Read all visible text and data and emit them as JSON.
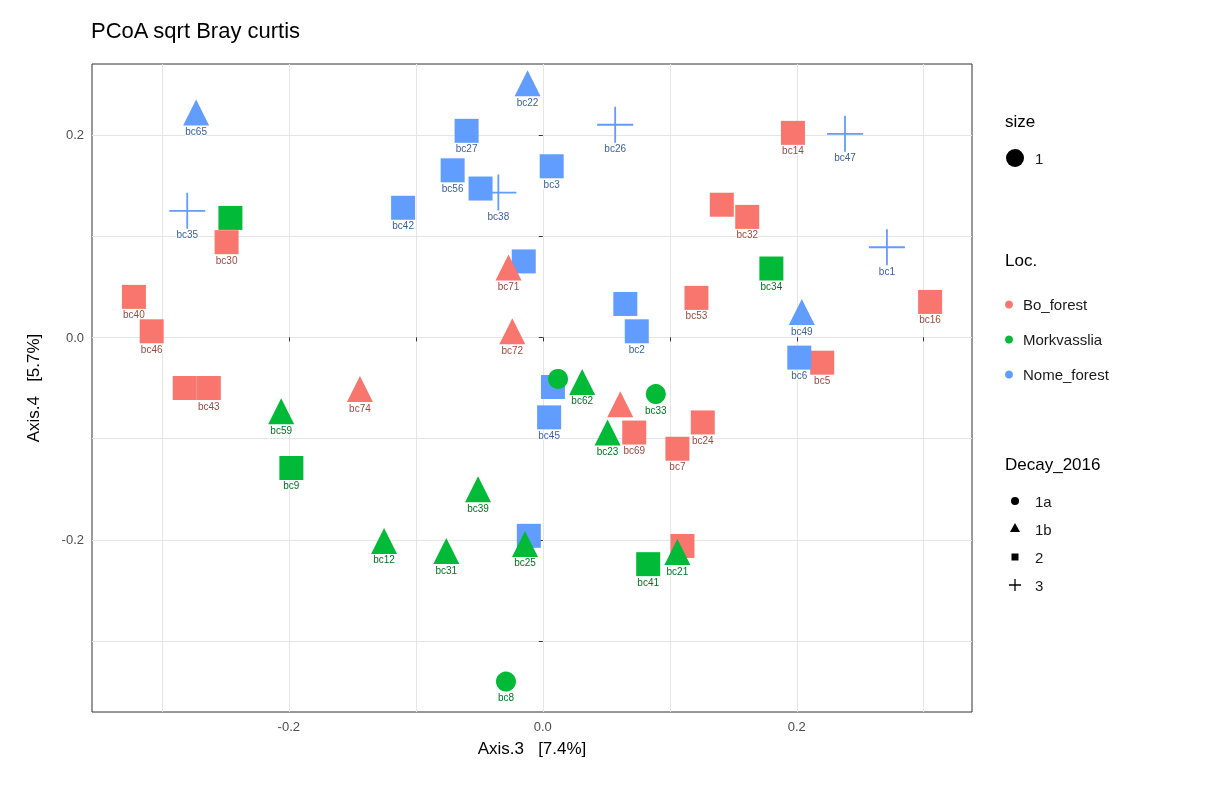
{
  "chart_data": {
    "type": "scatter",
    "title": "PCoA sqrt Bray curtis",
    "xlabel": "Axis.3   [7.4%]",
    "ylabel": "Axis.4   [5.7%]",
    "xlim": [
      -0.355,
      0.338
    ],
    "ylim": [
      -0.37,
      0.27
    ],
    "xticks": [
      {
        "value": -0.3,
        "label": null
      },
      -0.2,
      {
        "value": -0.1,
        "label": null
      },
      {
        "value": 0,
        "label": "0.0"
      },
      {
        "value": 0.1,
        "label": null
      },
      0.2,
      {
        "value": 0.3,
        "label": null
      }
    ],
    "yticks": [
      {
        "value": -0.3,
        "label": null
      },
      -0.2,
      {
        "value": -0.1,
        "label": null
      },
      {
        "value": 0,
        "label": "0.0"
      },
      {
        "value": 0.1,
        "label": null
      },
      0.2
    ],
    "grid": true,
    "legend": "right",
    "legend_title": "Loc.",
    "annotations": [
      "size",
      "1",
      "Decay_2016",
      "1a",
      "1b",
      "2",
      "3"
    ],
    "series": [
      {
        "name": "Bo_forest",
        "color": "#f8766d",
        "marker": "square",
        "x": [
          0.197,
          0.141,
          0.161,
          0.121,
          0.305,
          0.22,
          -0.249,
          -0.322,
          -0.308,
          -0.282,
          -0.263,
          0.072,
          0.106,
          0.126,
          0.11
        ],
        "values": [
          0.202,
          0.131,
          0.119,
          0.039,
          0.035,
          -0.025,
          0.094,
          0.04,
          0.006,
          -0.05,
          -0.05,
          -0.094,
          -0.11,
          -0.084,
          -0.206
        ],
        "value_labels": [
          "bc14",
          null,
          "bc32",
          "bc53",
          "bc16",
          "bc5",
          "bc30",
          "bc40",
          "bc46",
          null,
          "bc43",
          "bc69",
          "bc7",
          "bc24",
          null
        ]
      },
      {
        "name": "Nome_forest",
        "color": "#619cff",
        "marker": "square",
        "x": [
          0.202,
          -0.06,
          -0.071,
          -0.049,
          0.007,
          -0.11,
          -0.015,
          0.065,
          0.074,
          0.008,
          0.005,
          -0.011
        ],
        "values": [
          -0.02,
          0.204,
          0.165,
          0.147,
          0.169,
          0.128,
          0.075,
          0.033,
          0.006,
          -0.049,
          -0.079,
          -0.196
        ],
        "value_labels": [
          "bc6",
          "bc27",
          "bc56",
          null,
          "bc3",
          "bc42",
          null,
          null,
          "bc2",
          null,
          "bc45",
          null
        ]
      },
      {
        "name": "Morkvasslia",
        "color": "#00ba38",
        "marker": "square",
        "x": [
          0.18,
          -0.246,
          -0.198,
          0.083
        ],
        "values": [
          0.068,
          0.118,
          -0.129,
          -0.224
        ],
        "value_labels": [
          "bc34",
          null,
          "bc9",
          "bc41"
        ]
      },
      {
        "color": "#f8766d",
        "marker": "triangle",
        "x": [
          -0.144,
          -0.027,
          -0.024,
          0.061
        ],
        "values": [
          -0.051,
          0.069,
          0.006,
          -0.066
        ],
        "value_labels": [
          "bc74",
          "bc71",
          "bc72",
          null
        ]
      },
      {
        "color": "#00ba38",
        "marker": "triangle",
        "x": [
          -0.206,
          -0.125,
          0.031,
          0.051,
          -0.051,
          -0.076,
          -0.014,
          0.106
        ],
        "values": [
          -0.073,
          -0.201,
          -0.044,
          -0.094,
          -0.15,
          -0.211,
          -0.204,
          -0.212
        ],
        "value_labels": [
          "bc59",
          "bc12",
          "bc62",
          "bc23",
          "bc39",
          "bc31",
          "bc25",
          "bc21"
        ]
      },
      {
        "color": "#619cff",
        "marker": "triangle",
        "x": [
          -0.273,
          -0.012,
          0.204
        ],
        "values": [
          0.222,
          0.251,
          0.025
        ],
        "value_labels": [
          "bc65",
          "bc22",
          "bc49"
        ]
      },
      {
        "color": "#00ba38",
        "marker": "circle",
        "x": [
          0.012,
          0.089,
          -0.029
        ],
        "values": [
          -0.041,
          -0.056,
          -0.34
        ],
        "value_labels": [
          null,
          "bc33",
          "bc8"
        ]
      },
      {
        "color": "#619cff",
        "marker": "cross",
        "x": [
          -0.28,
          0.057,
          -0.035,
          0.238,
          0.271
        ],
        "values": [
          0.125,
          0.21,
          0.143,
          0.201,
          0.089
        ],
        "value_labels": [
          "bc35",
          "bc26",
          "bc38",
          "bc47",
          "bc1"
        ]
      }
    ]
  }
}
